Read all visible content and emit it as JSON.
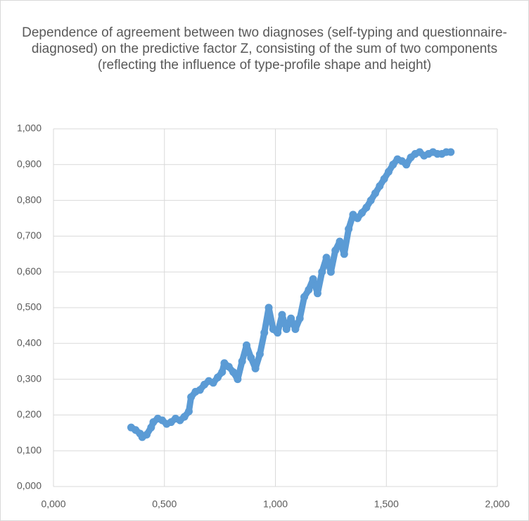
{
  "chart_data": {
    "type": "scatter",
    "title": "Dependence of agreement between two diagnoses (self-typing and questionnaire-diagnosed) on the predictive factor Z, consisting of the sum of two components (reflecting the influence of type-profile shape and height)",
    "xlim": [
      0,
      2
    ],
    "xticks": [
      {
        "value": 0,
        "label": "0,000"
      },
      {
        "value": 0.5,
        "label": "0,500"
      },
      {
        "value": 1,
        "label": "1,000"
      },
      {
        "value": 1.5,
        "label": "1,500"
      },
      {
        "value": 2,
        "label": "2,000"
      }
    ],
    "ylim": [
      0,
      1
    ],
    "yticks": [
      {
        "value": 0,
        "label": "0,000"
      },
      {
        "value": 0.1,
        "label": "0,100"
      },
      {
        "value": 0.2,
        "label": "0,200"
      },
      {
        "value": 0.3,
        "label": "0,300"
      },
      {
        "value": 0.4,
        "label": "0,400"
      },
      {
        "value": 0.5,
        "label": "0,500"
      },
      {
        "value": 0.6,
        "label": "0,600"
      },
      {
        "value": 0.7,
        "label": "0,700"
      },
      {
        "value": 0.8,
        "label": "0,800"
      },
      {
        "value": 0.9,
        "label": "0,900"
      },
      {
        "value": 1,
        "label": "1,000"
      }
    ],
    "grid": true,
    "color": "#5b9bd5",
    "x": [
      0.35,
      0.37,
      0.39,
      0.4,
      0.42,
      0.44,
      0.45,
      0.47,
      0.49,
      0.51,
      0.53,
      0.55,
      0.57,
      0.59,
      0.61,
      0.62,
      0.64,
      0.66,
      0.68,
      0.7,
      0.72,
      0.74,
      0.76,
      0.77,
      0.79,
      0.81,
      0.83,
      0.85,
      0.87,
      0.89,
      0.91,
      0.93,
      0.95,
      0.97,
      0.99,
      1.01,
      1.03,
      1.05,
      1.07,
      1.09,
      1.11,
      1.13,
      1.15,
      1.17,
      1.19,
      1.21,
      1.23,
      1.25,
      1.27,
      1.29,
      1.31,
      1.33,
      1.35,
      1.37,
      1.39,
      1.41,
      1.43,
      1.45,
      1.47,
      1.49,
      1.51,
      1.53,
      1.55,
      1.57,
      1.59,
      1.61,
      1.63,
      1.65,
      1.67,
      1.69,
      1.71,
      1.73,
      1.75,
      1.77,
      1.79
    ],
    "values": [
      0.165,
      0.158,
      0.148,
      0.138,
      0.145,
      0.165,
      0.18,
      0.19,
      0.185,
      0.175,
      0.18,
      0.19,
      0.185,
      0.195,
      0.21,
      0.25,
      0.265,
      0.27,
      0.285,
      0.295,
      0.29,
      0.305,
      0.32,
      0.345,
      0.335,
      0.32,
      0.3,
      0.35,
      0.395,
      0.36,
      0.33,
      0.37,
      0.43,
      0.5,
      0.44,
      0.43,
      0.48,
      0.44,
      0.47,
      0.44,
      0.47,
      0.53,
      0.55,
      0.58,
      0.54,
      0.6,
      0.64,
      0.6,
      0.66,
      0.685,
      0.65,
      0.72,
      0.76,
      0.75,
      0.765,
      0.78,
      0.8,
      0.82,
      0.84,
      0.86,
      0.88,
      0.9,
      0.915,
      0.91,
      0.9,
      0.92,
      0.93,
      0.935,
      0.925,
      0.93,
      0.935,
      0.93,
      0.93,
      0.935,
      0.935
    ]
  }
}
